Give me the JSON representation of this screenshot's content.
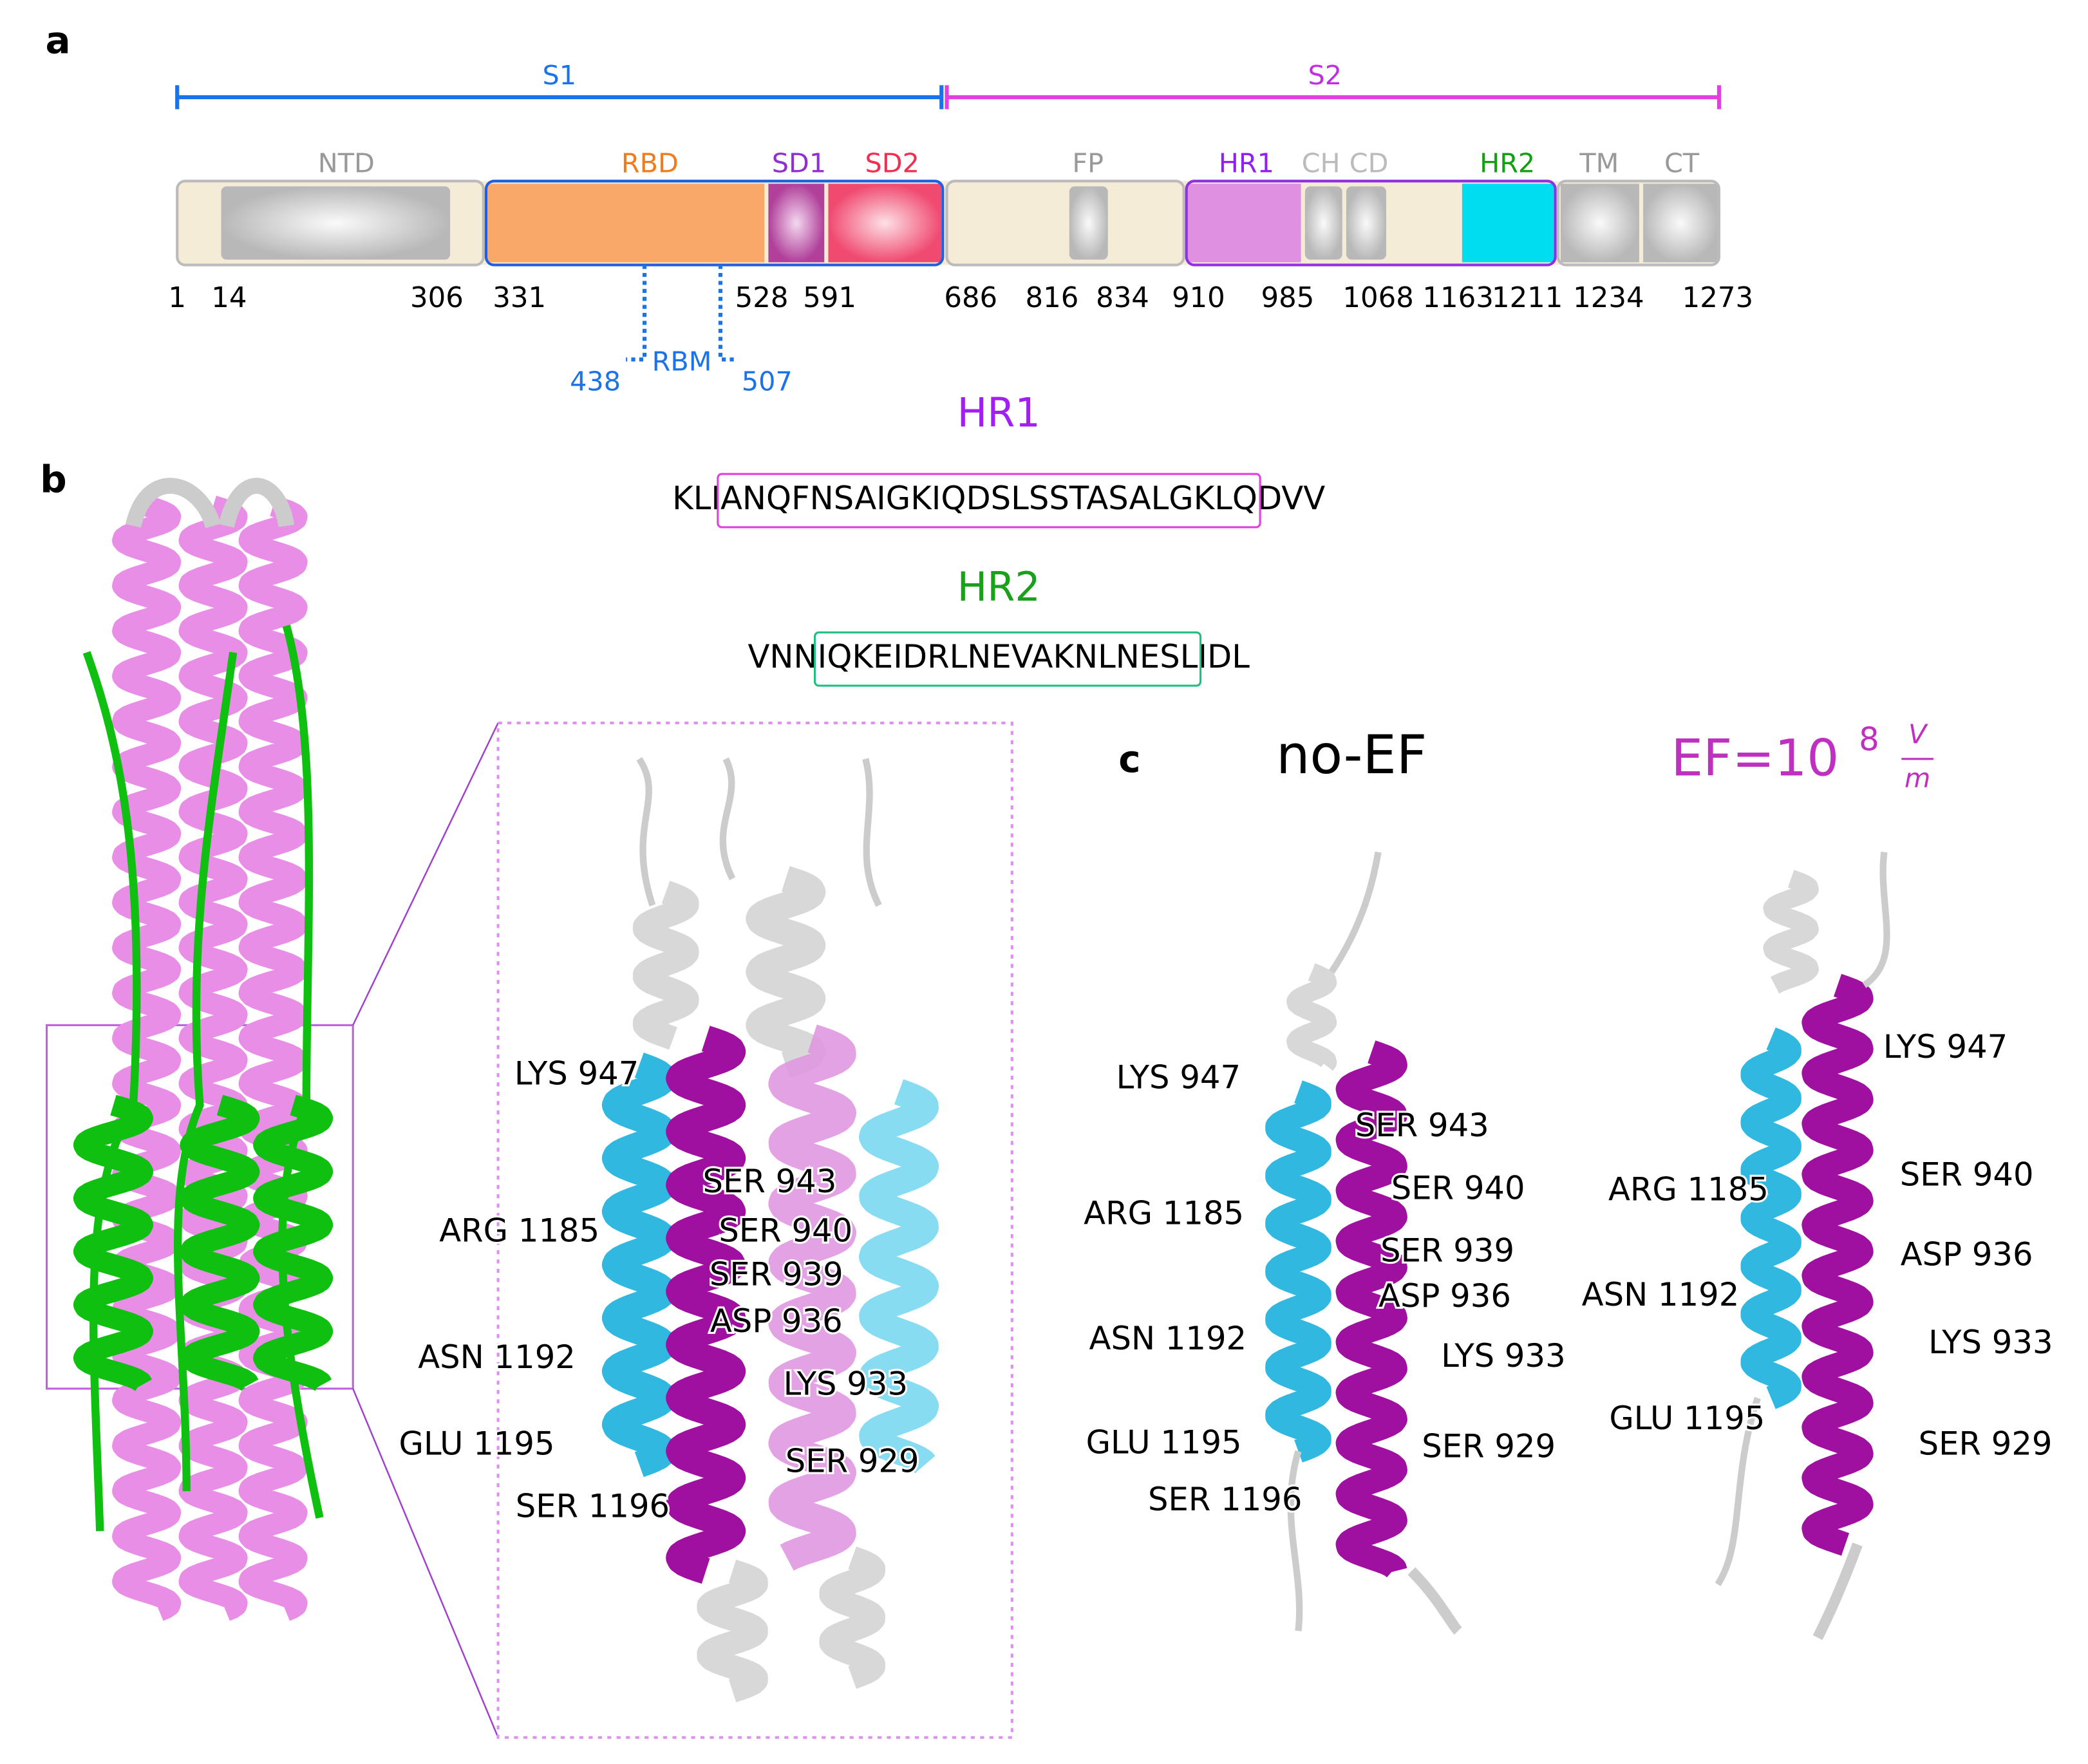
{
  "panel_a": {
    "label": "a",
    "s1": "S1",
    "s2": "S2",
    "domains": [
      "NTD",
      "RBD",
      "SD1",
      "SD2",
      "FP",
      "HR1",
      "CH",
      "CD",
      "HR2",
      "TM",
      "CT"
    ],
    "positions": [
      1,
      14,
      306,
      331,
      528,
      591,
      686,
      816,
      834,
      910,
      985,
      1068,
      1163,
      1211,
      1234,
      1273
    ],
    "rbm": {
      "label": "RBM",
      "start": 438,
      "end": 507
    }
  },
  "panel_b": {
    "label": "b",
    "hr1": {
      "title": "HR1",
      "prefix": "KLI",
      "core": "ANQFNSAIGKIQDSLSSTASALGKLQ",
      "suffix": "DVV"
    },
    "hr2": {
      "title": "HR2",
      "prefix": "VNN",
      "core": "IQKEIDRLNEVAKNLNESL",
      "suffix": "IDL"
    },
    "residues": [
      "LYS 947",
      "ARG 1185",
      "ASN 1192",
      "GLU 1195",
      "SER 1196",
      "SER 943",
      "SER 940",
      "SER 939",
      "ASP 936",
      "LYS 933",
      "SER 929"
    ]
  },
  "panel_c": {
    "label": "c",
    "no_ef": "no-EF",
    "ef": {
      "prefix": "EF=10",
      "exponent": "8",
      "numerator": "V",
      "denominator": "m"
    },
    "no_ef_residues": [
      "LYS 947",
      "SER 943",
      "ARG 1185",
      "SER 940",
      "SER 939",
      "ASP 936",
      "ASN 1192",
      "LYS 933",
      "GLU 1195",
      "SER 929",
      "SER 1196"
    ],
    "ef_residues": [
      "LYS 947",
      "ARG 1185",
      "SER 940",
      "ASP 936",
      "ASN 1192",
      "LYS 933",
      "GLU 1195",
      "SER 929"
    ]
  }
}
